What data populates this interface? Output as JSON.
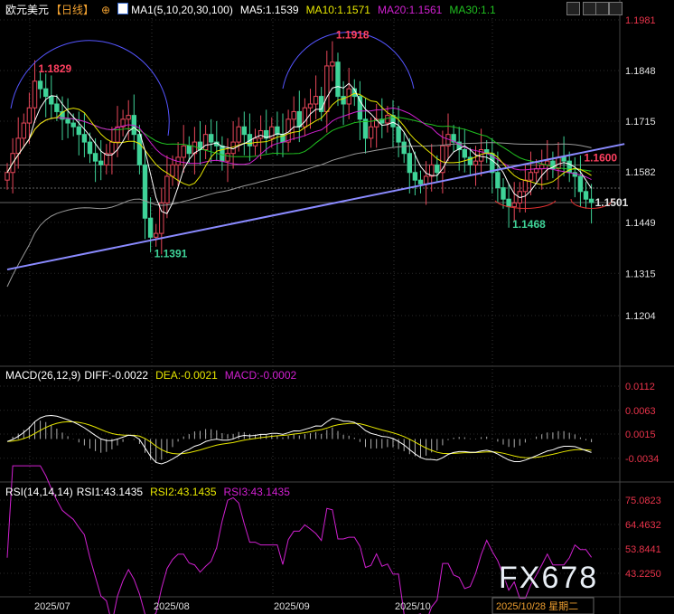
{
  "header": {
    "symbol": "欧元美元",
    "period": "【日线】",
    "ma_label": "MA1(5,10,20,30,100)",
    "ma5": "MA5:1.1539",
    "ma10": "MA10:1.1571",
    "ma20": "MA20:1.1561",
    "ma30": "MA30:1.1"
  },
  "macd_header": {
    "label": "MACD(26,12,9)",
    "diff": "DIFF:-0.0022",
    "dea": "DEA:-0.0021",
    "macd": "MACD:-0.0002"
  },
  "rsi_header": {
    "label": "RSI(14,14,14)",
    "rsi1": "RSI1:43.1435",
    "rsi2": "RSI2:43.1435",
    "rsi3": "RSI3:43.1435"
  },
  "watermark": "FX678",
  "colors": {
    "up": "#e8475a",
    "down": "#3fd398",
    "ma5": "#ffffff",
    "ma10": "#e6e600",
    "ma20": "#d020d0",
    "ma30": "#20c020",
    "ma100": "#999999",
    "trend": "#8a8aff",
    "axis_price": "#e0e0e0",
    "axis_red": "#e8334a"
  },
  "chart_data": {
    "type": "candlestick",
    "price_ticks": [
      "1.1981",
      "1.1848",
      "1.1715",
      "1.1582",
      "1.1449",
      "1.1315",
      "1.1204"
    ],
    "macd_ticks": [
      "0.0112",
      "0.0063",
      "0.0015",
      "-0.0034"
    ],
    "rsi_ticks": [
      "75.0823",
      "64.4632",
      "53.8441",
      "43.2250"
    ],
    "x_labels": [
      "2025/07",
      "2025/08",
      "2025/09",
      "2025/10",
      "2025/10/28 星期二"
    ],
    "annotations": [
      {
        "text": "1.1829",
        "price": 1.1829,
        "index": 5
      },
      {
        "text": "1.1918",
        "price": 1.1918,
        "index": 59
      },
      {
        "text": "1.1391",
        "price": 1.1391,
        "index": 26
      },
      {
        "text": "1.1468",
        "price": 1.1468,
        "index": 91
      },
      {
        "text": "1.1600",
        "price": 1.16,
        "index": 104
      },
      {
        "text": "1.1501",
        "price": 1.1501,
        "index": 106
      }
    ],
    "trendline": {
      "from_index": 0,
      "from_price": 1.1325,
      "to_index": 112,
      "to_price": 1.1655
    },
    "hlines": [
      {
        "price": 1.16,
        "style": "solid"
      },
      {
        "price": 1.1539,
        "style": "dashed"
      },
      {
        "price": 1.1501,
        "style": "solid"
      }
    ],
    "closes": [
      1.158,
      1.163,
      1.167,
      1.171,
      1.175,
      1.182,
      1.18,
      1.178,
      1.176,
      1.174,
      1.172,
      1.171,
      1.17,
      1.168,
      1.166,
      1.163,
      1.161,
      1.16,
      1.163,
      1.166,
      1.17,
      1.172,
      1.173,
      1.168,
      1.16,
      1.146,
      1.141,
      1.142,
      1.15,
      1.157,
      1.16,
      1.162,
      1.165,
      1.163,
      1.166,
      1.164,
      1.168,
      1.166,
      1.165,
      1.161,
      1.163,
      1.166,
      1.17,
      1.168,
      1.165,
      1.167,
      1.169,
      1.167,
      1.17,
      1.168,
      1.166,
      1.172,
      1.174,
      1.17,
      1.175,
      1.176,
      1.178,
      1.174,
      1.186,
      1.187,
      1.178,
      1.176,
      1.18,
      1.178,
      1.172,
      1.167,
      1.17,
      1.172,
      1.171,
      1.173,
      1.17,
      1.166,
      1.163,
      1.158,
      1.156,
      1.155,
      1.157,
      1.16,
      1.158,
      1.165,
      1.168,
      1.166,
      1.164,
      1.162,
      1.16,
      1.161,
      1.164,
      1.163,
      1.158,
      1.154,
      1.151,
      1.149,
      1.15,
      1.153,
      1.156,
      1.158,
      1.159,
      1.16,
      1.161,
      1.159,
      1.162,
      1.161,
      1.158,
      1.157,
      1.153,
      1.151,
      1.1501
    ]
  }
}
